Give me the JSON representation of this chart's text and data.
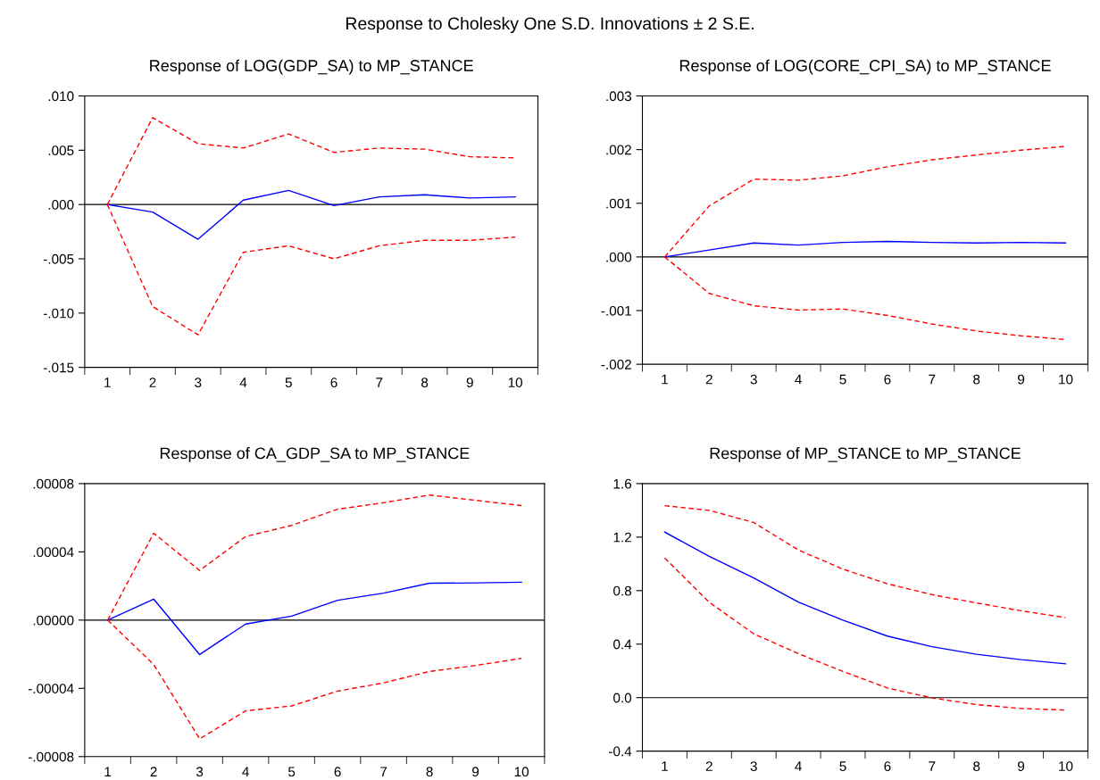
{
  "chart_data": [
    {
      "type": "line",
      "title": "Response of LOG(GDP_SA) to MP_STANCE",
      "annotations": [
        "Response to Cholesky One S.D. Innovations ± 2 S.E."
      ],
      "categories": [
        "1",
        "2",
        "3",
        "4",
        "5",
        "6",
        "7",
        "8",
        "9",
        "10"
      ],
      "series": [
        {
          "color": "#0000ff",
          "line_style": "solid",
          "values": [
            0,
            -0.0007,
            -0.0032,
            0.0004,
            0.0013,
            -0.0001,
            0.0007,
            0.0009,
            0.0006,
            0.0007
          ]
        },
        {
          "color": "#ff0000",
          "line_style": "dashed",
          "values": [
            0,
            0.008,
            0.0056,
            0.0052,
            0.0065,
            0.0048,
            0.0052,
            0.0051,
            0.0044,
            0.0043
          ]
        },
        {
          "color": "#ff0000",
          "line_style": "dashed",
          "values": [
            0,
            -0.0094,
            -0.012,
            -0.0044,
            -0.0038,
            -0.005,
            -0.0038,
            -0.0033,
            -0.0033,
            -0.003
          ]
        }
      ],
      "ylim": [
        -0.015,
        0.01
      ],
      "yticks": [
        {
          "value": -0.015,
          "label": "-.015"
        },
        {
          "value": -0.01,
          "label": "-.010"
        },
        {
          "value": -0.005,
          "label": "-.005"
        },
        {
          "value": 0,
          "label": ".000"
        },
        {
          "value": 0.005,
          "label": ".005"
        },
        {
          "value": 0.01,
          "label": ".010"
        }
      ],
      "ref_lines": [
        {
          "axis": "y",
          "value": 0,
          "color": "#000000"
        }
      ],
      "grid": false,
      "legend": false
    },
    {
      "type": "line",
      "title": "Response of LOG(CORE_CPI_SA) to MP_STANCE",
      "categories": [
        "1",
        "2",
        "3",
        "4",
        "5",
        "6",
        "7",
        "8",
        "9",
        "10"
      ],
      "series": [
        {
          "color": "#0000ff",
          "line_style": "solid",
          "values": [
            0,
            0.00013,
            0.00026,
            0.00022,
            0.00027,
            0.00029,
            0.00027,
            0.00026,
            0.00027,
            0.00026
          ]
        },
        {
          "color": "#ff0000",
          "line_style": "dashed",
          "values": [
            0,
            0.00095,
            0.00145,
            0.00143,
            0.00151,
            0.00168,
            0.00181,
            0.0019,
            0.00199,
            0.00206
          ]
        },
        {
          "color": "#ff0000",
          "line_style": "dashed",
          "values": [
            0,
            -0.00068,
            -0.00091,
            -0.00099,
            -0.00097,
            -0.00109,
            -0.00125,
            -0.00138,
            -0.00147,
            -0.00154
          ]
        }
      ],
      "ylim": [
        -0.002,
        0.003
      ],
      "yticks": [
        {
          "value": -0.002,
          "label": "-.002"
        },
        {
          "value": -0.001,
          "label": "-.001"
        },
        {
          "value": 0,
          "label": ".000"
        },
        {
          "value": 0.001,
          "label": ".001"
        },
        {
          "value": 0.002,
          "label": ".002"
        },
        {
          "value": 0.003,
          "label": ".003"
        }
      ],
      "ref_lines": [
        {
          "axis": "y",
          "value": 0,
          "color": "#000000"
        }
      ],
      "grid": false,
      "legend": false
    },
    {
      "type": "line",
      "title": "Response of CA_GDP_SA to MP_STANCE",
      "categories": [
        "1",
        "2",
        "3",
        "4",
        "5",
        "6",
        "7",
        "8",
        "9",
        "10"
      ],
      "series": [
        {
          "color": "#0000ff",
          "line_style": "solid",
          "values": [
            0,
            1.23e-05,
            -2.02e-05,
            -2.3e-06,
            2.3e-06,
            1.16e-05,
            1.58e-05,
            2.16e-05,
            2.18e-05,
            2.22e-05
          ]
        },
        {
          "color": "#ff0000",
          "line_style": "dashed",
          "values": [
            0,
            5.09e-05,
            2.91e-05,
            4.9e-05,
            5.55e-05,
            6.5e-05,
            6.88e-05,
            7.33e-05,
            7.02e-05,
            6.71e-05
          ]
        },
        {
          "color": "#ff0000",
          "line_style": "dashed",
          "values": [
            0,
            -2.6e-05,
            -6.96e-05,
            -5.32e-05,
            -5.03e-05,
            -4.16e-05,
            -3.68e-05,
            -3.01e-05,
            -2.66e-05,
            -2.24e-05
          ]
        }
      ],
      "ylim": [
        -8e-05,
        8e-05
      ],
      "yticks": [
        {
          "value": -8e-05,
          "label": "-.00008"
        },
        {
          "value": -4e-05,
          "label": "-.00004"
        },
        {
          "value": 0,
          "label": ".00000"
        },
        {
          "value": 4e-05,
          "label": ".00004"
        },
        {
          "value": 8e-05,
          "label": ".00008"
        }
      ],
      "ref_lines": [
        {
          "axis": "y",
          "value": 0,
          "color": "#000000"
        }
      ],
      "grid": false,
      "legend": false
    },
    {
      "type": "line",
      "title": "Response of MP_STANCE to MP_STANCE",
      "categories": [
        "1",
        "2",
        "3",
        "4",
        "5",
        "6",
        "7",
        "8",
        "9",
        "10"
      ],
      "series": [
        {
          "color": "#0000ff",
          "line_style": "solid",
          "values": [
            1.238,
            1.056,
            0.894,
            0.715,
            0.579,
            0.46,
            0.381,
            0.324,
            0.284,
            0.253
          ]
        },
        {
          "color": "#ff0000",
          "line_style": "dashed",
          "values": [
            1.435,
            1.4,
            1.309,
            1.104,
            0.961,
            0.851,
            0.77,
            0.708,
            0.649,
            0.598
          ]
        },
        {
          "color": "#ff0000",
          "line_style": "dashed",
          "values": [
            1.044,
            0.713,
            0.477,
            0.329,
            0.196,
            0.072,
            -0.002,
            -0.052,
            -0.081,
            -0.093
          ]
        }
      ],
      "ylim": [
        -0.4,
        1.6
      ],
      "yticks": [
        {
          "value": -0.4,
          "label": "-0.4"
        },
        {
          "value": 0,
          "label": "0.0"
        },
        {
          "value": 0.4,
          "label": "0.4"
        },
        {
          "value": 0.8,
          "label": "0.8"
        },
        {
          "value": 1.2,
          "label": "1.2"
        },
        {
          "value": 1.6,
          "label": "1.6"
        }
      ],
      "ref_lines": [
        {
          "axis": "y",
          "value": 0,
          "color": "#000000"
        }
      ],
      "grid": false,
      "legend": false
    }
  ]
}
